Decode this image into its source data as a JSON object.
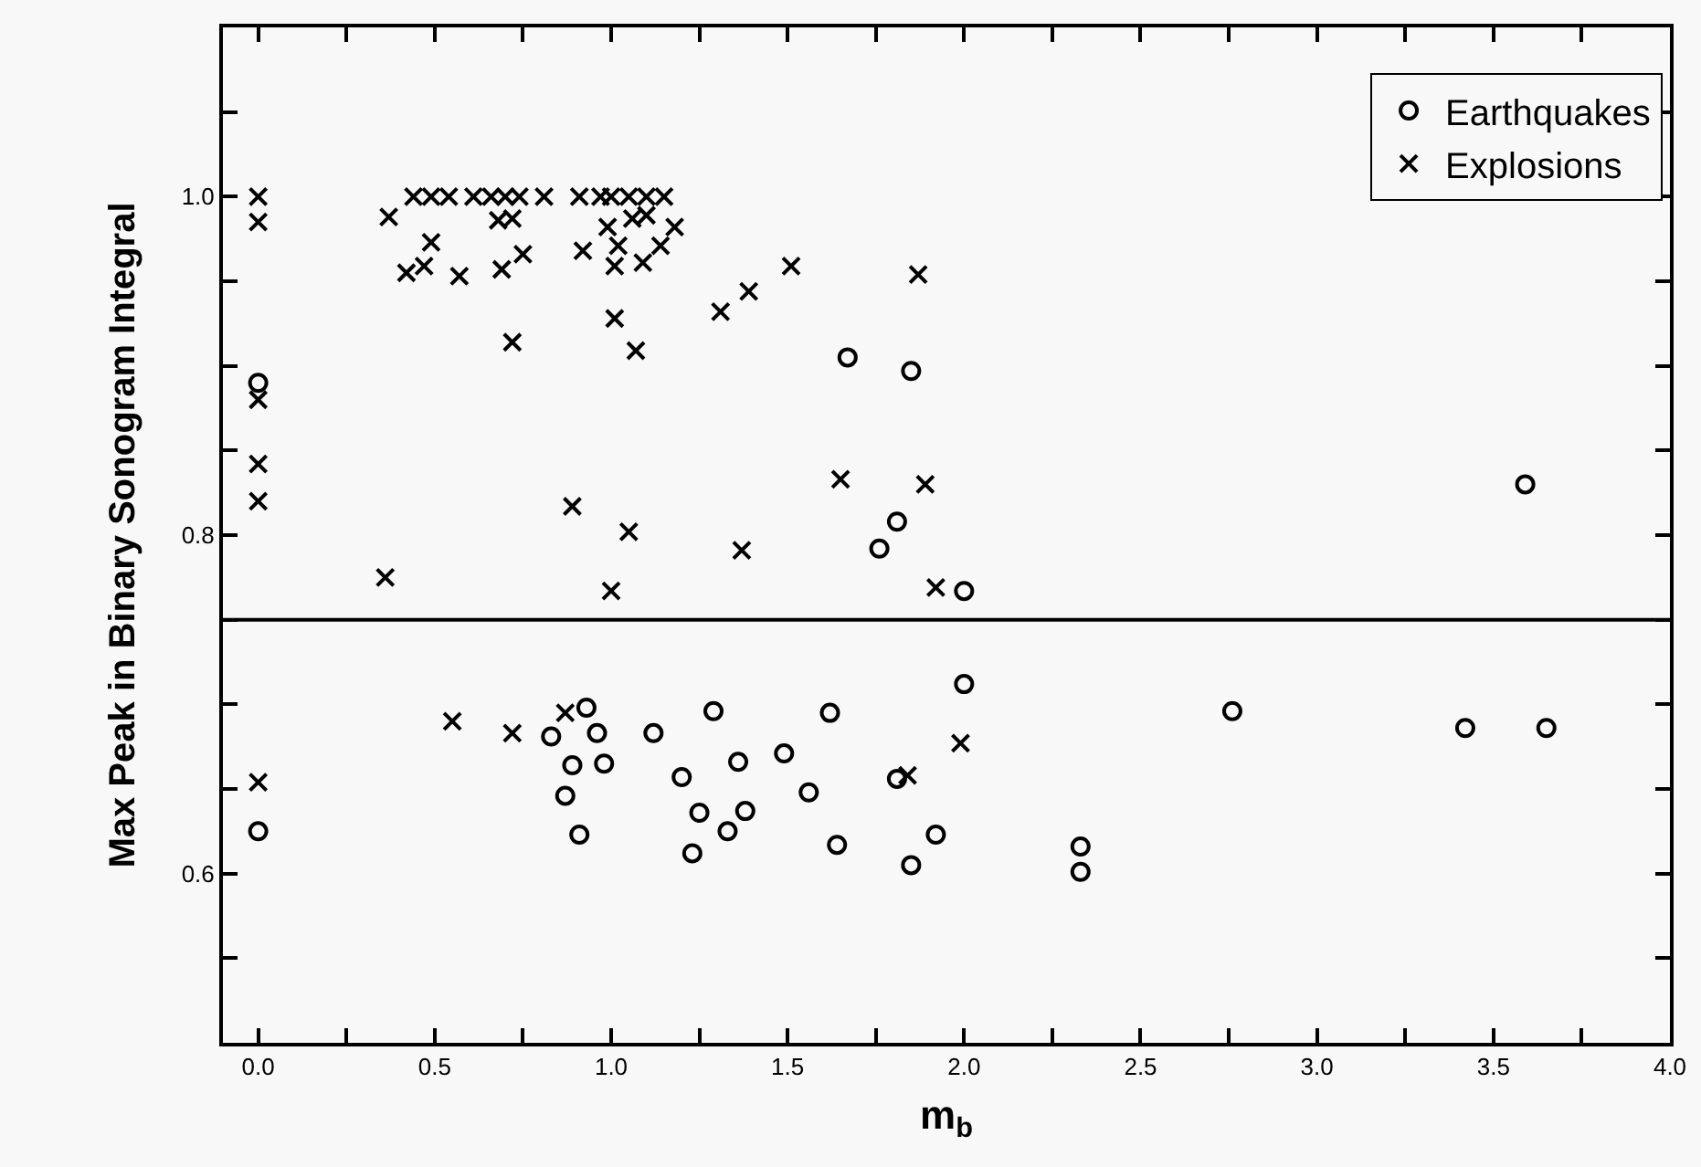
{
  "chart_data": {
    "type": "scatter",
    "xlabel": "m$_{b}$",
    "ylabel": "Max Peak in Binary Sonogram Integral",
    "xlim": [
      -0.1,
      4.0
    ],
    "ylim": [
      0.5,
      1.1
    ],
    "xticks": [
      {
        "value": 0.0,
        "label": "0.0"
      },
      {
        "value": 0.25,
        "label": null
      },
      {
        "value": 0.5,
        "label": "0.5"
      },
      {
        "value": 0.75,
        "label": null
      },
      {
        "value": 1.0,
        "label": "1.0"
      },
      {
        "value": 1.25,
        "label": null
      },
      {
        "value": 1.5,
        "label": "1.5"
      },
      {
        "value": 1.75,
        "label": null
      },
      {
        "value": 2.0,
        "label": "2.0"
      },
      {
        "value": 2.25,
        "label": null
      },
      {
        "value": 2.5,
        "label": "2.5"
      },
      {
        "value": 2.75,
        "label": null
      },
      {
        "value": 3.0,
        "label": "3.0"
      },
      {
        "value": 3.25,
        "label": null
      },
      {
        "value": 3.5,
        "label": "3.5"
      },
      {
        "value": 3.75,
        "label": null
      },
      {
        "value": 4.0,
        "label": "4.0"
      }
    ],
    "yticks": [
      {
        "value": 0.55,
        "label": null
      },
      0.6,
      {
        "value": 0.65,
        "label": null
      },
      {
        "value": 0.7,
        "label": null
      },
      {
        "value": 0.75,
        "label": null
      },
      0.8,
      {
        "value": 0.85,
        "label": null
      },
      {
        "value": 0.9,
        "label": null
      },
      {
        "value": 0.95,
        "label": null
      },
      {
        "value": 1.0,
        "label": "1.0"
      },
      {
        "value": 1.05,
        "label": null
      }
    ],
    "grid": false,
    "legend": "top right",
    "ref_lines": [
      {
        "axis": "y",
        "value": 0.75,
        "color": "#000000"
      }
    ],
    "series": [
      {
        "name": "Earthquakes",
        "color": "#000000",
        "marker": "circle",
        "x": [
          0.0,
          1.67,
          1.85,
          1.81,
          1.76,
          2.0,
          3.59,
          0.0,
          0.83,
          0.93,
          0.96,
          0.89,
          0.98,
          0.87,
          0.91,
          1.12,
          1.2,
          1.29,
          1.36,
          1.25,
          1.23,
          1.38,
          1.33,
          1.49,
          1.56,
          1.62,
          1.64,
          1.81,
          1.85,
          1.92,
          2.0,
          2.33,
          2.33,
          2.76,
          3.42,
          3.65
        ],
        "values": [
          0.89,
          0.905,
          0.897,
          0.808,
          0.792,
          0.767,
          0.83,
          0.625,
          0.681,
          0.698,
          0.683,
          0.664,
          0.665,
          0.646,
          0.623,
          0.683,
          0.657,
          0.696,
          0.666,
          0.636,
          0.612,
          0.637,
          0.625,
          0.671,
          0.648,
          0.695,
          0.617,
          0.656,
          0.605,
          0.623,
          0.712,
          0.616,
          0.601,
          0.696,
          0.686,
          0.686
        ]
      },
      {
        "name": "Explosions",
        "color": "#000000",
        "marker": "cross",
        "x": [
          0.0,
          0.0,
          0.0,
          0.0,
          0.0,
          0.37,
          0.44,
          0.49,
          0.54,
          0.61,
          0.66,
          0.7,
          0.74,
          0.81,
          0.91,
          0.97,
          1.0,
          1.05,
          1.1,
          1.15,
          0.49,
          0.47,
          0.42,
          0.57,
          0.68,
          0.72,
          0.69,
          0.75,
          0.72,
          0.92,
          0.99,
          1.02,
          1.01,
          1.06,
          1.1,
          1.09,
          1.14,
          1.18,
          1.01,
          1.07,
          1.31,
          1.39,
          1.51,
          1.87,
          0.89,
          1.05,
          1.37,
          1.65,
          1.89,
          0.36,
          1.0,
          1.92,
          0.0,
          0.55,
          0.72,
          0.87,
          1.84,
          1.99
        ],
        "values": [
          1.0,
          0.985,
          0.88,
          0.842,
          0.82,
          0.988,
          1.0,
          1.0,
          1.0,
          1.0,
          1.0,
          1.0,
          1.0,
          1.0,
          1.0,
          1.0,
          1.0,
          1.0,
          1.0,
          1.0,
          0.973,
          0.959,
          0.955,
          0.953,
          0.986,
          0.987,
          0.957,
          0.966,
          0.914,
          0.968,
          0.982,
          0.971,
          0.959,
          0.987,
          0.989,
          0.961,
          0.971,
          0.982,
          0.928,
          0.909,
          0.932,
          0.944,
          0.959,
          0.954,
          0.817,
          0.802,
          0.791,
          0.833,
          0.83,
          0.775,
          0.767,
          0.769,
          0.654,
          0.69,
          0.683,
          0.695,
          0.658,
          0.677
        ]
      }
    ]
  }
}
